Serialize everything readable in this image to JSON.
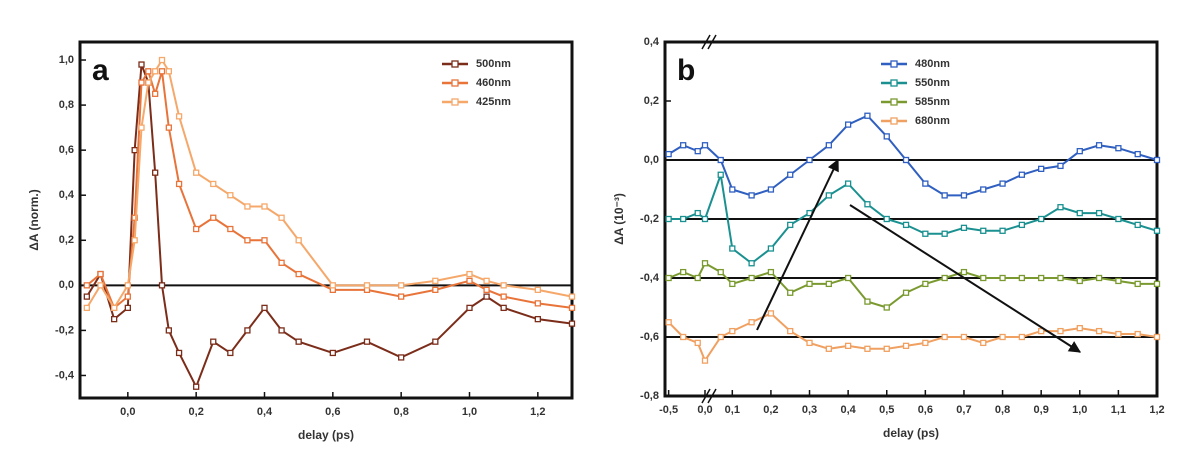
{
  "chart_data": [
    {
      "type": "line",
      "label": "a",
      "x_label": "delay (ps)",
      "y_label": "ΔA (norm.)",
      "xlim": [
        -0.14,
        1.3
      ],
      "ylim": [
        -0.5,
        1.08
      ],
      "xticks": [
        {
          "value": 0,
          "label": "0,0"
        },
        {
          "value": 0.2,
          "label": "0,2"
        },
        {
          "value": 0.4,
          "label": "0,4"
        },
        {
          "value": 0.6,
          "label": "0,6"
        },
        {
          "value": 0.8,
          "label": "0,8"
        },
        {
          "value": 1.0,
          "label": "1,0"
        },
        {
          "value": 1.2,
          "label": "1,2"
        }
      ],
      "yticks": [
        {
          "value": 1.0,
          "label": "1,0"
        },
        {
          "value": 0.8,
          "label": "0,8"
        },
        {
          "value": 0.6,
          "label": "0,6"
        },
        {
          "value": 0.4,
          "label": "0,4"
        },
        {
          "value": 0.2,
          "label": "0,2"
        },
        {
          "value": 0,
          "label": "0,0"
        },
        {
          "value": -0.2,
          "label": "-0,2"
        },
        {
          "value": -0.4,
          "label": "-0,4"
        }
      ],
      "hlines": [
        0
      ],
      "legend": "upper right",
      "x": [
        -0.12,
        -0.08,
        -0.04,
        0,
        0.02,
        0.04,
        0.06,
        0.08,
        0.1,
        0.12,
        0.15,
        0.2,
        0.25,
        0.3,
        0.35,
        0.4,
        0.45,
        0.5,
        0.6,
        0.7,
        0.8,
        0.9,
        1.0,
        1.05,
        1.1,
        1.2,
        1.3
      ],
      "series": [
        {
          "name": "500nm",
          "color": "#7b2d1a",
          "values": [
            -0.05,
            0.05,
            -0.15,
            -0.1,
            0.6,
            0.98,
            0.9,
            0.5,
            0.0,
            -0.2,
            -0.3,
            -0.45,
            -0.25,
            -0.3,
            -0.2,
            -0.1,
            -0.2,
            -0.25,
            -0.3,
            -0.25,
            -0.32,
            -0.25,
            -0.1,
            -0.05,
            -0.1,
            -0.15,
            -0.17
          ]
        },
        {
          "name": "460nm",
          "color": "#e8743a",
          "values": [
            0.0,
            0.05,
            -0.1,
            -0.05,
            0.3,
            0.9,
            0.95,
            0.85,
            0.95,
            0.7,
            0.45,
            0.25,
            0.3,
            0.25,
            0.2,
            0.2,
            0.1,
            0.05,
            -0.02,
            -0.02,
            -0.05,
            -0.02,
            0.02,
            -0.02,
            -0.05,
            -0.08,
            -0.1
          ]
        },
        {
          "name": "425nm",
          "color": "#f5a86a",
          "values": [
            -0.1,
            0.0,
            -0.1,
            0.0,
            0.2,
            0.7,
            0.9,
            0.95,
            1.0,
            0.95,
            0.75,
            0.5,
            0.45,
            0.4,
            0.35,
            0.35,
            0.3,
            0.2,
            0.0,
            0.0,
            0.0,
            0.02,
            0.05,
            0.02,
            0.0,
            -0.02,
            -0.05
          ]
        }
      ]
    },
    {
      "type": "line",
      "label": "b",
      "x_label": "delay (ps)",
      "y_label": "ΔA (10⁻³)",
      "xlim": [
        -0.55,
        1.2
      ],
      "xbreak": [
        0.0,
        0.05
      ],
      "ylim": [
        -0.8,
        0.4
      ],
      "xticks": [
        {
          "value": -0.5,
          "label": "-0,5"
        },
        {
          "value": 0,
          "label": "0,0"
        },
        {
          "value": 0.1,
          "label": "0,1"
        },
        {
          "value": 0.2,
          "label": "0,2"
        },
        {
          "value": 0.3,
          "label": "0,3"
        },
        {
          "value": 0.4,
          "label": "0,4"
        },
        {
          "value": 0.5,
          "label": "0,5"
        },
        {
          "value": 0.6,
          "label": "0,6"
        },
        {
          "value": 0.7,
          "label": "0,7"
        },
        {
          "value": 0.8,
          "label": "0,8"
        },
        {
          "value": 0.9,
          "label": "0,9"
        },
        {
          "value": 1.0,
          "label": "1,0"
        },
        {
          "value": 1.1,
          "label": "1,1"
        },
        {
          "value": 1.2,
          "label": "1,2"
        }
      ],
      "yticks": [
        {
          "value": 0.4,
          "label": "0,4"
        },
        {
          "value": 0.2,
          "label": "0,2"
        },
        {
          "value": 0,
          "label": "0,0"
        },
        {
          "value": -0.2,
          "label": "-0,2"
        },
        {
          "value": -0.4,
          "label": "-0,4"
        },
        {
          "value": -0.6,
          "label": "-0,6"
        },
        {
          "value": -0.8,
          "label": "-0,8"
        }
      ],
      "hlines": [
        0,
        -0.2,
        -0.4,
        -0.6
      ],
      "legend": "upper center",
      "x": [
        -0.5,
        -0.3,
        -0.1,
        0.0,
        0.07,
        0.1,
        0.15,
        0.2,
        0.25,
        0.3,
        0.35,
        0.4,
        0.45,
        0.5,
        0.55,
        0.6,
        0.65,
        0.7,
        0.75,
        0.8,
        0.85,
        0.9,
        0.95,
        1.0,
        1.05,
        1.1,
        1.15,
        1.2
      ],
      "series": [
        {
          "name": "480nm",
          "color": "#2f5fc0",
          "values": [
            0.02,
            0.05,
            0.03,
            0.05,
            0.0,
            -0.1,
            -0.12,
            -0.1,
            -0.05,
            0.0,
            0.05,
            0.12,
            0.15,
            0.08,
            0.0,
            -0.08,
            -0.12,
            -0.12,
            -0.1,
            -0.08,
            -0.05,
            -0.03,
            -0.02,
            0.03,
            0.05,
            0.04,
            0.02,
            0.0
          ]
        },
        {
          "name": "550nm",
          "color": "#1a9090",
          "values": [
            -0.2,
            -0.2,
            -0.18,
            -0.2,
            -0.05,
            -0.3,
            -0.35,
            -0.3,
            -0.22,
            -0.18,
            -0.12,
            -0.08,
            -0.15,
            -0.2,
            -0.22,
            -0.25,
            -0.25,
            -0.23,
            -0.24,
            -0.24,
            -0.22,
            -0.2,
            -0.16,
            -0.18,
            -0.18,
            -0.2,
            -0.22,
            -0.24
          ]
        },
        {
          "name": "585nm",
          "color": "#7a9a30",
          "values": [
            -0.4,
            -0.38,
            -0.4,
            -0.35,
            -0.38,
            -0.42,
            -0.4,
            -0.38,
            -0.45,
            -0.42,
            -0.42,
            -0.4,
            -0.48,
            -0.5,
            -0.45,
            -0.42,
            -0.4,
            -0.38,
            -0.4,
            -0.4,
            -0.4,
            -0.4,
            -0.4,
            -0.41,
            -0.4,
            -0.41,
            -0.42,
            -0.42
          ]
        },
        {
          "name": "680nm",
          "color": "#f0a060",
          "values": [
            -0.55,
            -0.6,
            -0.62,
            -0.68,
            -0.6,
            -0.58,
            -0.55,
            -0.52,
            -0.58,
            -0.62,
            -0.64,
            -0.63,
            -0.64,
            -0.64,
            -0.63,
            -0.62,
            -0.6,
            -0.6,
            -0.62,
            -0.6,
            -0.6,
            -0.58,
            -0.58,
            -0.57,
            -0.58,
            -0.59,
            -0.59,
            -0.6
          ]
        }
      ]
    }
  ]
}
